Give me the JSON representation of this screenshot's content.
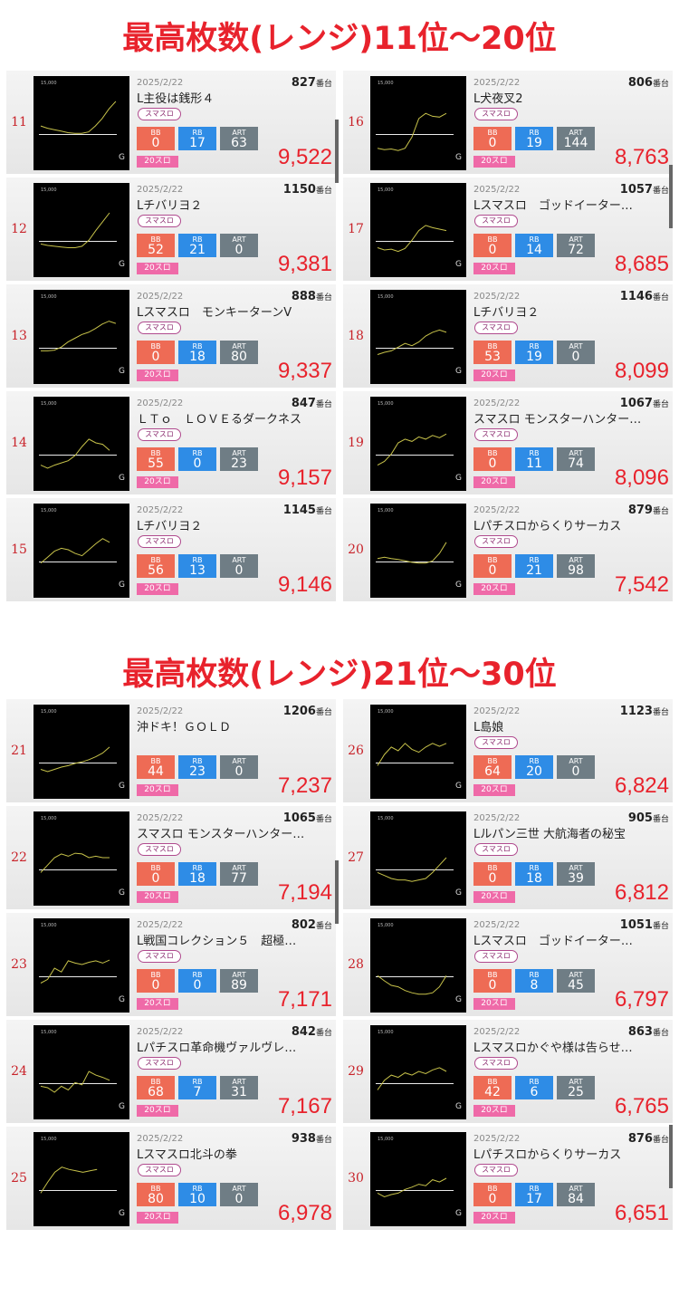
{
  "sections": [
    {
      "title": "最高枚数(レンジ)11位～20位",
      "columns": [
        [
          {
            "rank": "11",
            "date": "2025/2/22",
            "unit": "827",
            "unit_suffix": "番台",
            "name": "L主役は銭形４",
            "type": "スマスロ",
            "bb_label": "BB",
            "bb": "0",
            "rb_label": "RB",
            "rb": "17",
            "art_label": "ART",
            "art": "63",
            "tag": "20スロ",
            "max": "9,522",
            "graph_max": "15,000",
            "graph_axis": "G",
            "trend": [
              0.45,
              0.42,
              0.4,
              0.38,
              0.36,
              0.35,
              0.35,
              0.37,
              0.45,
              0.55,
              0.68,
              0.78
            ]
          },
          {
            "rank": "12",
            "date": "2025/2/22",
            "unit": "1150",
            "unit_suffix": "番台",
            "name": "Lチバリヨ２",
            "type": "スマスロ",
            "bb_label": "BB",
            "bb": "52",
            "rb_label": "RB",
            "rb": "21",
            "art_label": "ART",
            "art": "0",
            "tag": "20スロ",
            "max": "9,381",
            "graph_max": "15,000",
            "graph_axis": "G",
            "trend": [
              0.3,
              0.28,
              0.27,
              0.26,
              0.25,
              0.25,
              0.27,
              0.35,
              0.48,
              0.6,
              0.72
            ]
          },
          {
            "rank": "13",
            "date": "2025/2/22",
            "unit": "888",
            "unit_suffix": "番台",
            "name": "Lスマスロ　モンキーターンⅤ",
            "type": "スマスロ",
            "bb_label": "BB",
            "bb": "0",
            "rb_label": "RB",
            "rb": "18",
            "art_label": "ART",
            "art": "80",
            "tag": "20スロ",
            "max": "9,337",
            "graph_max": "15,000",
            "graph_axis": "G",
            "trend": [
              0.3,
              0.3,
              0.31,
              0.35,
              0.42,
              0.47,
              0.52,
              0.55,
              0.6,
              0.66,
              0.7,
              0.67
            ]
          },
          {
            "rank": "14",
            "date": "2025/2/22",
            "unit": "847",
            "unit_suffix": "番台",
            "name": "ＬＴｏ　ＬＯＶＥるダークネス",
            "type": "スマスロ",
            "bb_label": "BB",
            "bb": "55",
            "rb_label": "RB",
            "rb": "0",
            "art_label": "ART",
            "art": "23",
            "tag": "20スロ",
            "max": "9,157",
            "graph_max": "15,000",
            "graph_axis": "G",
            "trend": [
              0.2,
              0.16,
              0.2,
              0.23,
              0.26,
              0.33,
              0.45,
              0.55,
              0.5,
              0.48,
              0.4
            ]
          },
          {
            "rank": "15",
            "date": "2025/2/22",
            "unit": "1145",
            "unit_suffix": "番台",
            "name": "Lチバリヨ２",
            "type": "スマスロ",
            "bb_label": "BB",
            "bb": "56",
            "rb_label": "RB",
            "rb": "13",
            "art_label": "ART",
            "art": "0",
            "tag": "20スロ",
            "max": "9,146",
            "graph_max": "15,000",
            "graph_axis": "G",
            "trend": [
              0.32,
              0.4,
              0.48,
              0.52,
              0.5,
              0.45,
              0.42,
              0.5,
              0.58,
              0.65,
              0.6
            ]
          }
        ],
        [
          {
            "rank": "16",
            "date": "2025/2/22",
            "unit": "806",
            "unit_suffix": "番台",
            "name": "L犬夜叉2",
            "type": "スマスロ",
            "bb_label": "BB",
            "bb": "0",
            "rb_label": "RB",
            "rb": "19",
            "art_label": "ART",
            "art": "144",
            "tag": "20スロ",
            "max": "8,763",
            "graph_max": "15,000",
            "graph_axis": "G",
            "trend": [
              0.15,
              0.13,
              0.14,
              0.12,
              0.15,
              0.3,
              0.55,
              0.62,
              0.58,
              0.57,
              0.62
            ]
          },
          {
            "rank": "17",
            "date": "2025/2/22",
            "unit": "1057",
            "unit_suffix": "番台",
            "name": "Lスマスロ　ゴッドイーター…",
            "type": "スマスロ",
            "bb_label": "BB",
            "bb": "0",
            "rb_label": "RB",
            "rb": "14",
            "art_label": "ART",
            "art": "72",
            "tag": "20スロ",
            "max": "8,685",
            "graph_max": "15,000",
            "graph_axis": "G",
            "trend": [
              0.25,
              0.22,
              0.23,
              0.2,
              0.24,
              0.35,
              0.48,
              0.55,
              0.52,
              0.5,
              0.48
            ]
          },
          {
            "rank": "18",
            "date": "2025/2/22",
            "unit": "1146",
            "unit_suffix": "番台",
            "name": "Lチバリヨ２",
            "type": "スマスロ",
            "bb_label": "BB",
            "bb": "53",
            "rb_label": "RB",
            "rb": "19",
            "art_label": "ART",
            "art": "0",
            "tag": "20スロ",
            "max": "8,099",
            "graph_max": "15,000",
            "graph_axis": "G",
            "trend": [
              0.25,
              0.28,
              0.3,
              0.35,
              0.4,
              0.37,
              0.42,
              0.5,
              0.55,
              0.58,
              0.55
            ]
          },
          {
            "rank": "19",
            "date": "2025/2/22",
            "unit": "1067",
            "unit_suffix": "番台",
            "name": "スマスロ モンスターハンター…",
            "type": "スマスロ",
            "bb_label": "BB",
            "bb": "0",
            "rb_label": "RB",
            "rb": "11",
            "art_label": "ART",
            "art": "74",
            "tag": "20スロ",
            "max": "8,096",
            "graph_max": "15,000",
            "graph_axis": "G",
            "trend": [
              0.2,
              0.25,
              0.35,
              0.5,
              0.55,
              0.52,
              0.58,
              0.55,
              0.6,
              0.57,
              0.62
            ]
          },
          {
            "rank": "20",
            "date": "2025/2/22",
            "unit": "879",
            "unit_suffix": "番台",
            "name": "Lパチスロからくりサーカス",
            "type": "スマスロ",
            "bb_label": "BB",
            "bb": "0",
            "rb_label": "RB",
            "rb": "21",
            "art_label": "ART",
            "art": "98",
            "tag": "20スロ",
            "max": "7,542",
            "graph_max": "15,000",
            "graph_axis": "G",
            "trend": [
              0.38,
              0.4,
              0.38,
              0.37,
              0.35,
              0.33,
              0.32,
              0.32,
              0.35,
              0.45,
              0.6
            ]
          }
        ]
      ]
    },
    {
      "title": "最高枚数(レンジ)21位～30位",
      "columns": [
        [
          {
            "rank": "21",
            "date": "2025/2/22",
            "unit": "1206",
            "unit_suffix": "番台",
            "name": "沖ドキ！ＧＯＬＤ",
            "type": "",
            "bb_label": "BB",
            "bb": "44",
            "rb_label": "RB",
            "rb": "23",
            "art_label": "ART",
            "art": "0",
            "tag": "20スロ",
            "max": "7,237",
            "graph_max": "15,000",
            "graph_axis": "G",
            "trend": [
              0.25,
              0.22,
              0.25,
              0.28,
              0.3,
              0.33,
              0.35,
              0.38,
              0.42,
              0.47,
              0.55
            ]
          },
          {
            "rank": "22",
            "date": "2025/2/22",
            "unit": "1065",
            "unit_suffix": "番台",
            "name": "スマスロ モンスターハンター…",
            "type": "スマスロ",
            "bb_label": "BB",
            "bb": "0",
            "rb_label": "RB",
            "rb": "18",
            "art_label": "ART",
            "art": "77",
            "tag": "20スロ",
            "max": "7,194",
            "graph_max": "15,000",
            "graph_axis": "G",
            "trend": [
              0.3,
              0.4,
              0.5,
              0.55,
              0.52,
              0.56,
              0.55,
              0.5,
              0.52,
              0.5,
              0.5
            ]
          },
          {
            "rank": "23",
            "date": "2025/2/22",
            "unit": "802",
            "unit_suffix": "番台",
            "name": "L戦国コレクション５　超極…",
            "type": "スマスロ",
            "bb_label": "BB",
            "bb": "0",
            "rb_label": "RB",
            "rb": "0",
            "art_label": "ART",
            "art": "89",
            "tag": "20スロ",
            "max": "7,171",
            "graph_max": "15,000",
            "graph_axis": "G",
            "trend": [
              0.25,
              0.3,
              0.45,
              0.4,
              0.55,
              0.52,
              0.5,
              0.53,
              0.55,
              0.52,
              0.56
            ]
          },
          {
            "rank": "24",
            "date": "2025/2/22",
            "unit": "842",
            "unit_suffix": "番台",
            "name": "Lパチスロ革命機ヴァルヴレ…",
            "type": "スマスロ",
            "bb_label": "BB",
            "bb": "68",
            "rb_label": "RB",
            "rb": "7",
            "art_label": "ART",
            "art": "31",
            "tag": "20スロ",
            "max": "7,167",
            "graph_max": "15,000",
            "graph_axis": "G",
            "trend": [
              0.3,
              0.28,
              0.22,
              0.3,
              0.25,
              0.35,
              0.32,
              0.5,
              0.45,
              0.42,
              0.38
            ]
          },
          {
            "rank": "25",
            "date": "2025/2/22",
            "unit": "938",
            "unit_suffix": "番台",
            "name": "Lスマスロ北斗の拳",
            "type": "スマスロ",
            "bb_label": "BB",
            "bb": "80",
            "rb_label": "RB",
            "rb": "10",
            "art_label": "ART",
            "art": "0",
            "tag": "20スロ",
            "max": "6,978",
            "graph_max": "15,000",
            "graph_axis": "G",
            "trend": [
              0.3,
              0.45,
              0.58,
              0.65,
              0.62,
              0.6,
              0.58,
              0.6,
              0.62
            ]
          }
        ],
        [
          {
            "rank": "26",
            "date": "2025/2/22",
            "unit": "1123",
            "unit_suffix": "番台",
            "name": "L島娘",
            "type": "スマスロ",
            "bb_label": "BB",
            "bb": "64",
            "rb_label": "RB",
            "rb": "20",
            "art_label": "ART",
            "art": "0",
            "tag": "20スロ",
            "max": "6,824",
            "graph_max": "15,000",
            "graph_axis": "G",
            "trend": [
              0.3,
              0.45,
              0.55,
              0.5,
              0.6,
              0.52,
              0.48,
              0.55,
              0.6,
              0.56,
              0.6
            ]
          },
          {
            "rank": "27",
            "date": "2025/2/22",
            "unit": "905",
            "unit_suffix": "番台",
            "name": "Lルパン三世 大航海者の秘宝",
            "type": "スマスロ",
            "bb_label": "BB",
            "bb": "0",
            "rb_label": "RB",
            "rb": "18",
            "art_label": "ART",
            "art": "39",
            "tag": "20スロ",
            "max": "6,812",
            "graph_max": "15,000",
            "graph_axis": "G",
            "trend": [
              0.3,
              0.26,
              0.22,
              0.2,
              0.2,
              0.18,
              0.2,
              0.22,
              0.3,
              0.4,
              0.5
            ]
          },
          {
            "rank": "28",
            "date": "2025/2/22",
            "unit": "1051",
            "unit_suffix": "番台",
            "name": "Lスマスロ　ゴッドイーター…",
            "type": "スマスロ",
            "bb_label": "BB",
            "bb": "0",
            "rb_label": "RB",
            "rb": "8",
            "art_label": "ART",
            "art": "45",
            "tag": "20スロ",
            "max": "6,797",
            "graph_max": "15,000",
            "graph_axis": "G",
            "trend": [
              0.35,
              0.28,
              0.22,
              0.2,
              0.15,
              0.12,
              0.1,
              0.1,
              0.12,
              0.2,
              0.35
            ]
          },
          {
            "rank": "29",
            "date": "2025/2/22",
            "unit": "863",
            "unit_suffix": "番台",
            "name": "Lスマスロかぐや様は告らせ…",
            "type": "スマスロ",
            "bb_label": "BB",
            "bb": "42",
            "rb_label": "RB",
            "rb": "6",
            "art_label": "ART",
            "art": "25",
            "tag": "20スロ",
            "max": "6,765",
            "graph_max": "15,000",
            "graph_axis": "G",
            "trend": [
              0.25,
              0.38,
              0.45,
              0.42,
              0.48,
              0.45,
              0.5,
              0.47,
              0.52,
              0.55,
              0.5
            ]
          },
          {
            "rank": "30",
            "date": "2025/2/22",
            "unit": "876",
            "unit_suffix": "番台",
            "name": "Lパチスロからくりサーカス",
            "type": "スマスロ",
            "bb_label": "BB",
            "bb": "0",
            "rb_label": "RB",
            "rb": "17",
            "art_label": "ART",
            "art": "84",
            "tag": "20スロ",
            "max": "6,651",
            "graph_max": "15,000",
            "graph_axis": "G",
            "trend": [
              0.3,
              0.25,
              0.28,
              0.3,
              0.35,
              0.38,
              0.42,
              0.4,
              0.48,
              0.45,
              0.5
            ]
          }
        ]
      ]
    }
  ],
  "colors": {
    "title": "#e8222c",
    "bb": "#ee6b55",
    "rb": "#2e8ce6",
    "art": "#6f7d85",
    "tag": "#ef6aa8",
    "graph_line": "#c7c24a"
  }
}
